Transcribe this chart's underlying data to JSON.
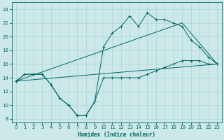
{
  "xlabel": "Humidex (Indice chaleur)",
  "background_color": "#cce8e8",
  "line_color": "#006868",
  "grid_color": "#aad4d4",
  "xlim": [
    -0.5,
    23.5
  ],
  "ylim": [
    7.5,
    25
  ],
  "yticks": [
    8,
    10,
    12,
    14,
    16,
    18,
    20,
    22,
    24
  ],
  "xticks": [
    0,
    1,
    2,
    3,
    4,
    5,
    6,
    7,
    8,
    9,
    10,
    11,
    12,
    13,
    14,
    15,
    16,
    17,
    18,
    19,
    20,
    21,
    22,
    23
  ],
  "series": [
    {
      "x": [
        0,
        1,
        2,
        3,
        4,
        5,
        6,
        7,
        8,
        9,
        10,
        11,
        12,
        13,
        14,
        14,
        15,
        16,
        17,
        18,
        19,
        20,
        21,
        22,
        23
      ],
      "y": [
        13.5,
        14.5,
        14.5,
        14.5,
        13.0,
        11.0,
        10.0,
        8.5,
        8.5,
        10.5,
        14.0,
        14.0,
        14.0,
        14.0,
        14.0,
        14.0,
        14.5,
        15.0,
        15.5,
        16.0,
        16.5,
        16.5,
        16.5,
        16.0,
        16.0
      ],
      "marker": true
    },
    {
      "x": [
        0,
        1,
        2,
        3,
        4,
        5,
        6,
        7,
        8,
        9,
        10,
        11,
        12,
        13,
        14,
        15,
        16,
        17,
        18,
        19,
        20,
        21,
        22,
        23
      ],
      "y": [
        13.5,
        14.5,
        14.5,
        14.5,
        13.0,
        11.0,
        10.0,
        8.5,
        8.5,
        10.5,
        18.5,
        20.5,
        21.5,
        23.0,
        21.5,
        23.5,
        22.5,
        22.5,
        22.0,
        21.5,
        19.5,
        18.5,
        17.0,
        16.0
      ],
      "marker": true
    },
    {
      "x": [
        0,
        19,
        23
      ],
      "y": [
        13.5,
        22.0,
        16.0
      ],
      "marker": false
    },
    {
      "x": [
        0,
        23
      ],
      "y": [
        13.5,
        16.0
      ],
      "marker": false
    }
  ]
}
